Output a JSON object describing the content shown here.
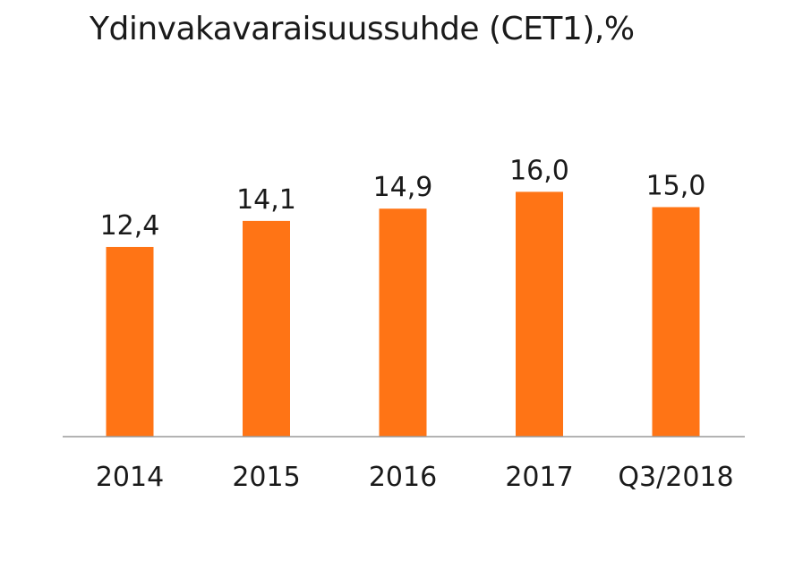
{
  "chart_data": {
    "type": "bar",
    "title": "Ydinvakavaraisuussuhde (CET1),%",
    "categories": [
      "2014",
      "2015",
      "2016",
      "2017",
      "Q3/2018"
    ],
    "values": [
      12.4,
      14.1,
      14.9,
      16.0,
      15.0
    ],
    "value_labels": [
      "12,4",
      "14,1",
      "14,9",
      "16,0",
      "15,0"
    ],
    "xlabel": "",
    "ylabel": "",
    "ylim": [
      0,
      24
    ],
    "grid": false,
    "colors": {
      "bar": "#FF7415",
      "axis": "#9a9a9a",
      "text": "#1a1a1a"
    }
  }
}
